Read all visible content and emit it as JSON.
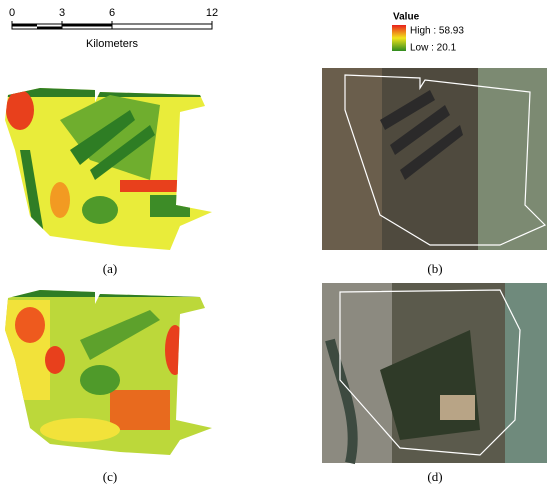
{
  "scale_bar": {
    "ticks": [
      0,
      3,
      6,
      12
    ],
    "unit": "Kilometers"
  },
  "legend": {
    "title": "Value",
    "high": "High : 58.93",
    "low": "Low : 20.1"
  },
  "panels": [
    {
      "label": "(a)"
    },
    {
      "label": "(b)"
    },
    {
      "label": "(c)"
    },
    {
      "label": "(d)"
    }
  ]
}
